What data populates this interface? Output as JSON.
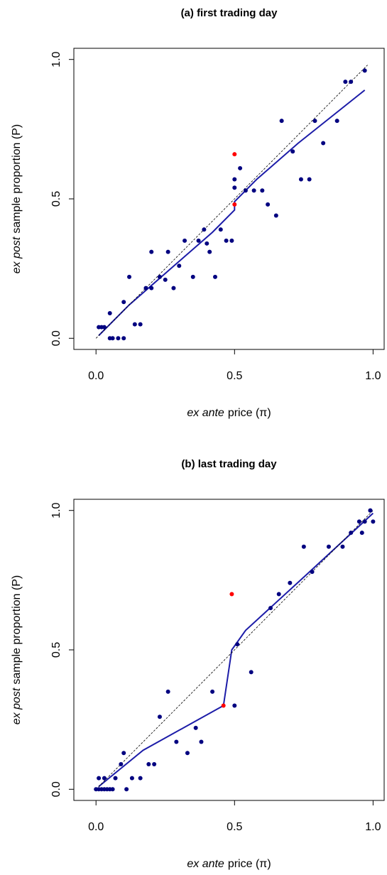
{
  "chart_data": [
    {
      "type": "scatter",
      "title": "(a) first trading day",
      "xlabel": [
        "ex ante",
        "price (π)"
      ],
      "ylabel": [
        "ex post",
        "sample proportion (P)"
      ],
      "xlim": [
        -0.08,
        1.04
      ],
      "ylim": [
        -0.04,
        1.04
      ],
      "xticks": [
        {
          "value": 0,
          "label": "0.0"
        },
        0.5,
        {
          "value": 1,
          "label": "1.0"
        }
      ],
      "yticks": [
        {
          "value": 0,
          "label": "0.0"
        },
        0.5,
        {
          "value": 1,
          "label": "1.0"
        }
      ],
      "series": [
        {
          "kind": "points",
          "color": "#000080",
          "x": [
            0.01,
            0.02,
            0.03,
            0.05,
            0.05,
            0.06,
            0.08,
            0.1,
            0.1,
            0.12,
            0.14,
            0.16,
            0.18,
            0.2,
            0.2,
            0.23,
            0.25,
            0.26,
            0.28,
            0.3,
            0.32,
            0.35,
            0.37,
            0.39,
            0.4,
            0.41,
            0.43,
            0.45,
            0.47,
            0.49,
            0.5,
            0.5,
            0.52,
            0.54,
            0.57,
            0.6,
            0.62,
            0.65,
            0.67,
            0.71,
            0.74,
            0.77,
            0.79,
            0.82,
            0.87,
            0.9,
            0.92,
            0.97
          ],
          "values": [
            0.04,
            0.04,
            0.04,
            0.09,
            0.0,
            0.0,
            0.0,
            0.0,
            0.13,
            0.22,
            0.05,
            0.05,
            0.18,
            0.18,
            0.31,
            0.22,
            0.21,
            0.31,
            0.18,
            0.26,
            0.35,
            0.22,
            0.35,
            0.39,
            0.34,
            0.31,
            0.22,
            0.39,
            0.35,
            0.35,
            0.57,
            0.54,
            0.61,
            0.53,
            0.53,
            0.53,
            0.48,
            0.44,
            0.78,
            0.67,
            0.57,
            0.57,
            0.78,
            0.7,
            0.78,
            0.92,
            0.92,
            0.96
          ]
        },
        {
          "kind": "points",
          "color": "#ff0000",
          "x": [
            0.5,
            0.5
          ],
          "values": [
            0.48,
            0.66
          ]
        },
        {
          "kind": "line",
          "color": "#1c1ca8",
          "x": [
            0.01,
            0.12,
            0.27,
            0.42,
            0.5,
            0.5,
            0.58,
            0.73,
            0.97
          ],
          "values": [
            0.01,
            0.12,
            0.25,
            0.38,
            0.46,
            0.49,
            0.57,
            0.7,
            0.89
          ]
        },
        {
          "kind": "line",
          "dash": true,
          "color": "#000000",
          "x": [
            0,
            0.98
          ],
          "values": [
            0,
            0.98
          ]
        }
      ]
    },
    {
      "type": "scatter",
      "title": "(b) last trading day",
      "xlabel": [
        "ex ante",
        "price (π)"
      ],
      "ylabel": [
        "ex post",
        "sample proportion (P)"
      ],
      "xlim": [
        -0.08,
        1.04
      ],
      "ylim": [
        -0.04,
        1.04
      ],
      "xticks": [
        {
          "value": 0,
          "label": "0.0"
        },
        0.5,
        {
          "value": 1,
          "label": "1.0"
        }
      ],
      "yticks": [
        {
          "value": 0,
          "label": "0.0"
        },
        0.5,
        {
          "value": 1,
          "label": "1.0"
        }
      ],
      "series": [
        {
          "kind": "points",
          "color": "#000080",
          "x": [
            0.0,
            0.01,
            0.02,
            0.03,
            0.04,
            0.05,
            0.06,
            0.01,
            0.03,
            0.07,
            0.09,
            0.1,
            0.11,
            0.13,
            0.16,
            0.19,
            0.21,
            0.23,
            0.26,
            0.29,
            0.33,
            0.36,
            0.38,
            0.42,
            0.5,
            0.51,
            0.56,
            0.63,
            0.66,
            0.7,
            0.75,
            0.78,
            0.84,
            0.89,
            0.92,
            0.95,
            0.96,
            0.97,
            0.99,
            0.99,
            1.0
          ],
          "values": [
            0.0,
            0.0,
            0.0,
            0.0,
            0.0,
            0.0,
            0.0,
            0.04,
            0.04,
            0.04,
            0.09,
            0.13,
            0.0,
            0.04,
            0.04,
            0.09,
            0.09,
            0.26,
            0.35,
            0.17,
            0.13,
            0.22,
            0.17,
            0.35,
            0.3,
            0.52,
            0.42,
            0.65,
            0.7,
            0.74,
            0.87,
            0.78,
            0.87,
            0.87,
            0.92,
            0.96,
            0.92,
            0.96,
            1.0,
            1.0,
            0.96
          ]
        },
        {
          "kind": "points",
          "color": "#ff0000",
          "x": [
            0.46,
            0.49
          ],
          "values": [
            0.3,
            0.7
          ]
        },
        {
          "kind": "line",
          "color": "#1c1ca8",
          "x": [
            0.01,
            0.17,
            0.46,
            0.49,
            0.54,
            0.76,
            1.0
          ],
          "values": [
            0.01,
            0.14,
            0.3,
            0.5,
            0.57,
            0.77,
            0.99
          ]
        },
        {
          "kind": "line",
          "dash": true,
          "color": "#000000",
          "x": [
            0,
            1
          ],
          "values": [
            0,
            1
          ]
        }
      ]
    }
  ]
}
